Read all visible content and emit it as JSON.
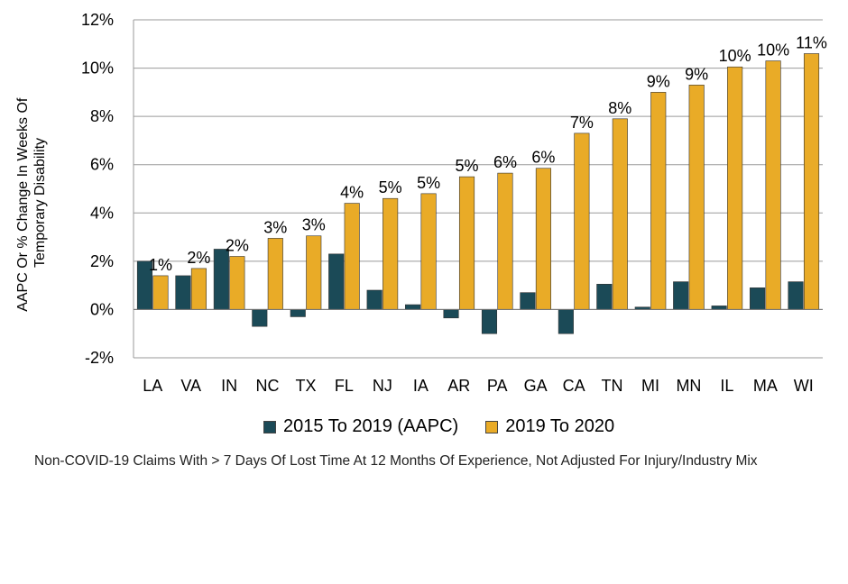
{
  "chart_data": {
    "type": "bar",
    "categories": [
      "LA",
      "VA",
      "IN",
      "NC",
      "TX",
      "FL",
      "NJ",
      "IA",
      "AR",
      "PA",
      "GA",
      "CA",
      "TN",
      "MI",
      "MN",
      "IL",
      "MA",
      "WI"
    ],
    "series": [
      {
        "name": "2015 To 2019 (AAPC)",
        "color": "#1b4a57",
        "values": [
          2.0,
          1.4,
          2.5,
          -0.7,
          -0.3,
          2.3,
          0.8,
          0.2,
          -0.35,
          -1.0,
          0.7,
          -1.0,
          1.05,
          0.1,
          1.15,
          0.15,
          0.9,
          1.15
        ],
        "labels": []
      },
      {
        "name": "2019 To 2020",
        "color": "#e9ab27",
        "values": [
          1.4,
          1.7,
          2.2,
          2.95,
          3.05,
          4.4,
          4.6,
          4.8,
          5.5,
          5.65,
          5.85,
          7.3,
          7.9,
          9.0,
          9.3,
          10.05,
          10.3,
          10.6
        ],
        "labels": [
          "1%",
          "2%",
          "2%",
          "3%",
          "3%",
          "4%",
          "5%",
          "5%",
          "5%",
          "6%",
          "6%",
          "7%",
          "8%",
          "9%",
          "9%",
          "10%",
          "10%",
          "11%"
        ]
      }
    ],
    "ylabel": "AAPC Or % Change In Weeks Of Temporary Disability",
    "ylabel_lines": [
      "AAPC Or % Change In Weeks Of",
      "Temporary Disability"
    ],
    "ylim": [
      -2,
      12
    ],
    "yticks": [
      -2,
      0,
      2,
      4,
      6,
      8,
      10,
      12
    ],
    "ytick_labels": [
      "-2%",
      "0%",
      "2%",
      "4%",
      "6%",
      "8%",
      "10%",
      "12%"
    ],
    "grid": true,
    "legend_position": "bottom"
  },
  "footnote": "Non-COVID-19 Claims With > 7 Days Of Lost Time At 12 Months Of Experience, Not Adjusted For Injury/Industry Mix"
}
